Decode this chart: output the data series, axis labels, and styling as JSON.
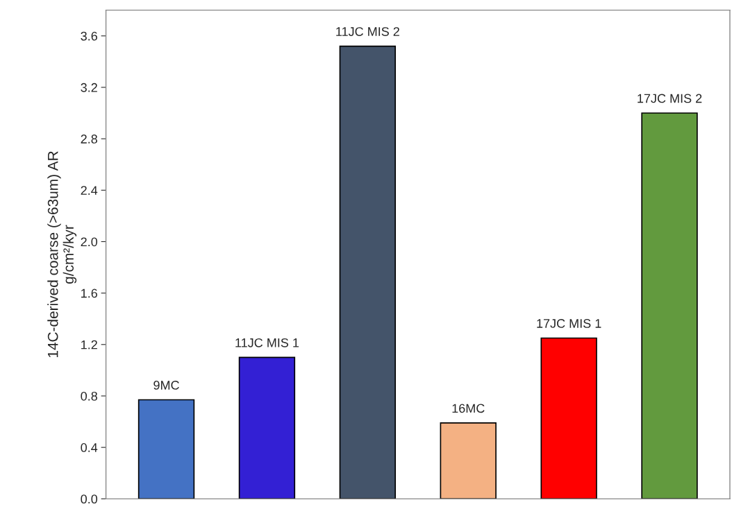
{
  "chart_data": {
    "type": "bar",
    "ylabel": "14C-derived coarse (>63um) AR\ng/cm²/kyr",
    "categories": [
      "9MC",
      "11JC MIS 1",
      "11JC MIS 2",
      "16MC",
      "17JC MIS 1",
      "17JC MIS 2"
    ],
    "values": [
      0.77,
      1.1,
      3.52,
      0.59,
      1.25,
      3.0
    ],
    "colors": [
      "#4472c4",
      "#3320d4",
      "#44546a",
      "#f4b183",
      "#ff0000",
      "#629a3e"
    ],
    "ylim": [
      0,
      3.8
    ],
    "yticks": [
      {
        "value": 0,
        "label": "0.0"
      },
      {
        "value": 0.4,
        "label": "0.4"
      },
      {
        "value": 0.8,
        "label": "0.8"
      },
      {
        "value": 1.2,
        "label": "1.2"
      },
      {
        "value": 1.6,
        "label": "1.6"
      },
      {
        "value": 2.0,
        "label": "2.0"
      },
      {
        "value": 2.4,
        "label": "2.4"
      },
      {
        "value": 2.8,
        "label": "2.8"
      },
      {
        "value": 3.2,
        "label": "3.2"
      },
      {
        "value": 3.6,
        "label": "3.6"
      }
    ],
    "tick_labels": "y",
    "grid": false,
    "legend": false
  }
}
